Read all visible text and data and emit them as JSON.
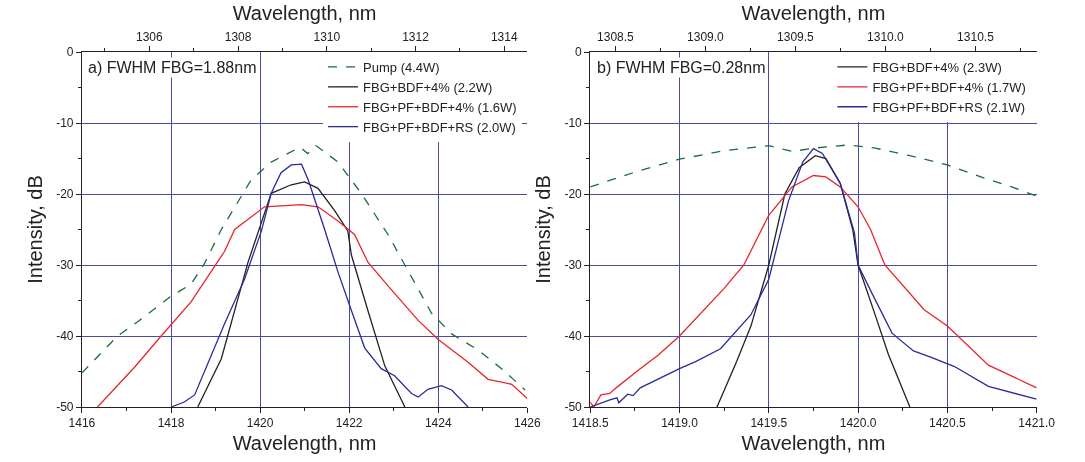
{
  "chart_data": [
    {
      "type": "line",
      "annotations": [
        "a) FWHM FBG=1.88nm"
      ],
      "xlabel": "Wavelength, nm",
      "x2label": "Wavelength, nm",
      "ylabel": "Intensity, dB",
      "xlim": [
        1416,
        1426
      ],
      "xticks": [
        1416,
        1418,
        1420,
        1422,
        1424,
        1426
      ],
      "x2lim": [
        1304.48,
        1314.52
      ],
      "x2ticks": [
        1306,
        1308,
        1310,
        1312,
        1314
      ],
      "ylim": [
        -50,
        0
      ],
      "yticks": [
        0,
        -10,
        -20,
        -30,
        -40,
        -50
      ],
      "grid": true,
      "legend": "top right",
      "series": [
        {
          "name": "Pump (4.4W)",
          "color": "#1f6b3a",
          "line_style": "dashed",
          "x": [
            1416,
            1416.8,
            1417.25,
            1418,
            1418.45,
            1418.75,
            1419.13,
            1419.8,
            1420.25,
            1420.9,
            1421.07,
            1421.26,
            1421.75,
            1422.27,
            1422.87,
            1423.25,
            1423.85,
            1424.3,
            1424.9,
            1425.42,
            1425.95
          ],
          "values": [
            -45.2,
            -40,
            -38,
            -34.4,
            -32.7,
            -29.8,
            -25,
            -18,
            -15.5,
            -13.4,
            -14.3,
            -13.2,
            -15.5,
            -19.9,
            -25.7,
            -30,
            -36.8,
            -39.7,
            -42,
            -44.6,
            -47.6
          ]
        },
        {
          "name": "FBG+BDF+4% (2.2W)",
          "color": "#222222",
          "line_style": "solid",
          "x": [
            1418.6,
            1419.13,
            1419.73,
            1420.25,
            1420.7,
            1421.0,
            1421.3,
            1421.67,
            1421.97,
            1422.05,
            1422.42,
            1422.8,
            1423.25
          ],
          "values": [
            -50,
            -43.2,
            -29.6,
            -19.9,
            -18.7,
            -18.3,
            -19.2,
            -22.3,
            -25.2,
            -28.6,
            -36.4,
            -44.2,
            -50
          ]
        },
        {
          "name": "FBG+PF+BDF+4% (1.6W)",
          "color": "#e8262a",
          "line_style": "solid",
          "x": [
            1416.35,
            1417.18,
            1417.78,
            1418.45,
            1419.2,
            1419.43,
            1420.1,
            1420.93,
            1421.3,
            1421.75,
            1422.12,
            1422.42,
            1422.95,
            1423.55,
            1424.0,
            1424.67,
            1425.12,
            1425.65,
            1426
          ],
          "values": [
            -50,
            -44.4,
            -40,
            -35.2,
            -28.1,
            -25,
            -21.8,
            -21.5,
            -21.8,
            -23.8,
            -25.7,
            -29.6,
            -33.5,
            -37.8,
            -40.5,
            -43.7,
            -46.1,
            -46.8,
            -48.8
          ]
        },
        {
          "name": "FBG+PF+BDF+RS (2.0W)",
          "color": "#2b2b9a",
          "line_style": "solid",
          "x": [
            1418.0,
            1418.3,
            1418.53,
            1419.2,
            1419.65,
            1420.03,
            1420.25,
            1420.47,
            1420.7,
            1420.93,
            1421.08,
            1421.45,
            1421.75,
            1422.05,
            1422.35,
            1422.72,
            1423.02,
            1423.4,
            1423.55,
            1423.77,
            1424.07,
            1424.3,
            1424.67
          ],
          "values": [
            -50,
            -49.3,
            -48.3,
            -38.3,
            -32,
            -25.2,
            -19.9,
            -17,
            -15.9,
            -15.8,
            -18,
            -25,
            -31,
            -36.4,
            -41.7,
            -44.6,
            -45.6,
            -48.1,
            -48.6,
            -47.5,
            -47,
            -47.6,
            -50
          ]
        }
      ]
    },
    {
      "type": "line",
      "annotations": [
        "b) FWHM FBG=0.28nm"
      ],
      "xlabel": "Wavelength, nm",
      "x2label": "Wavelength, nm",
      "ylabel": "Intensity, dB",
      "xlim": [
        1418.5,
        1421
      ],
      "xticks": [
        {
          "value": 1418.5,
          "label": "1418.5"
        },
        {
          "value": 1419,
          "label": "1419.0"
        },
        {
          "value": 1419.5,
          "label": "1419.5"
        },
        {
          "value": 1420,
          "label": "1420.0"
        },
        {
          "value": 1420.5,
          "label": "1420.5"
        },
        {
          "value": 1421,
          "label": "1421.0"
        }
      ],
      "x2lim": [
        1308.36,
        1310.84
      ],
      "x2ticks": [
        {
          "value": 1308.5,
          "label": "1308.5"
        },
        {
          "value": 1309,
          "label": "1309.0"
        },
        {
          "value": 1309.5,
          "label": "1309.5"
        },
        {
          "value": 1310,
          "label": "1310.0"
        },
        {
          "value": 1310.5,
          "label": "1310.5"
        }
      ],
      "ylim": [
        -50,
        0
      ],
      "yticks": [
        0,
        -10,
        -20,
        -30,
        -40,
        -50
      ],
      "grid": true,
      "legend": "top right",
      "series": [
        {
          "color": "#1f6b3a",
          "line_style": "dashed",
          "x": [
            1418.5,
            1418.74,
            1419,
            1419.25,
            1419.5,
            1419.63,
            1419.77,
            1419.94,
            1420.09,
            1420.29,
            1420.5,
            1420.71,
            1420.86,
            1421
          ],
          "values": [
            -19,
            -17,
            -15.1,
            -13.9,
            -13.2,
            -14,
            -13.5,
            -13.1,
            -13.5,
            -14.6,
            -15.9,
            -17.8,
            -19,
            -20.3
          ]
        },
        {
          "name": "FBG+BDF+4% (2.3W)",
          "color": "#222222",
          "line_style": "solid",
          "x": [
            1419.21,
            1419.32,
            1419.4,
            1419.5,
            1419.59,
            1419.67,
            1419.76,
            1419.82,
            1419.9,
            1419.97,
            1420.0,
            1420.09,
            1420.17,
            1420.29
          ],
          "values": [
            -50,
            -43.6,
            -38.6,
            -30,
            -20,
            -16.3,
            -14.6,
            -15,
            -18.5,
            -25,
            -30,
            -36.6,
            -42.6,
            -50
          ]
        },
        {
          "name": "FBG+PF+BDF+4% (1.7W)",
          "color": "#e8262a",
          "line_style": "solid",
          "x": [
            1418.5,
            1418.52,
            1418.56,
            1418.61,
            1418.65,
            1418.78,
            1418.88,
            1419,
            1419.25,
            1419.36,
            1419.5,
            1419.63,
            1419.75,
            1419.82,
            1419.9,
            1420,
            1420.07,
            1420.15,
            1420.37,
            1420.5,
            1420.73,
            1421
          ],
          "values": [
            -49.3,
            -50,
            -48.3,
            -48.1,
            -47.2,
            -44.6,
            -42.7,
            -40,
            -33.3,
            -30,
            -23,
            -19,
            -17.4,
            -17.6,
            -19,
            -21.8,
            -25,
            -30,
            -36.3,
            -38.6,
            -44.1,
            -47.3
          ]
        },
        {
          "name": "FBG+PF+BDF+RS (2.1W)",
          "color": "#2b2b9a",
          "line_style": "solid",
          "x": [
            1418.5,
            1418.61,
            1418.65,
            1418.66,
            1418.71,
            1418.74,
            1418.78,
            1419,
            1419.09,
            1419.23,
            1419.4,
            1419.5,
            1419.61,
            1419.69,
            1419.75,
            1419.8,
            1419.9,
            1419.98,
            1420,
            1420.08,
            1420.19,
            1420.31,
            1420.41,
            1420.54,
            1420.73,
            1421
          ],
          "values": [
            -50,
            -49,
            -48.7,
            -49.4,
            -48.2,
            -48.4,
            -47.3,
            -44.6,
            -43.6,
            -41.8,
            -37,
            -32,
            -21,
            -15.5,
            -13.6,
            -14.3,
            -18.5,
            -25.5,
            -30,
            -34.1,
            -39.6,
            -42.1,
            -43,
            -44.3,
            -47.1,
            -48.9
          ]
        }
      ]
    }
  ]
}
